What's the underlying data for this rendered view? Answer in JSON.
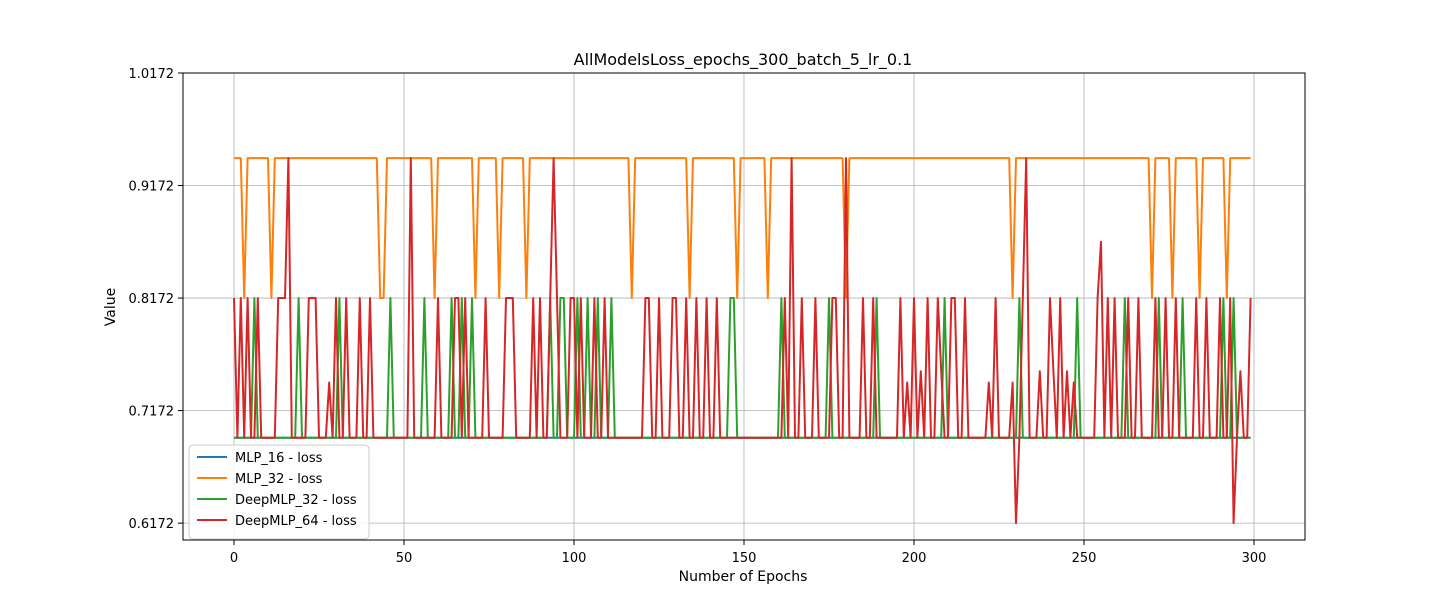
{
  "chart_data": {
    "type": "line",
    "title": "AllModelsLoss_epochs_300_batch_5_lr_0.1",
    "xlabel": "Number of Epochs",
    "ylabel": "Value",
    "xlim": [
      -15,
      315
    ],
    "ylim": [
      0.6022,
      1.0172
    ],
    "xticks": [
      0,
      50,
      100,
      150,
      200,
      250,
      300
    ],
    "xtick_labels": [
      "0",
      "50",
      "100",
      "150",
      "200",
      "250",
      "300"
    ],
    "yticks": [
      0.6172,
      0.7172,
      0.8172,
      0.9172,
      1.0172
    ],
    "ytick_labels": [
      "0.6172",
      "0.7172",
      "0.8172",
      "0.9172",
      "1.0172"
    ],
    "grid": true,
    "legend_position": "lower-left",
    "baseline": 0.6931,
    "series": [
      {
        "name": "MLP_16 - loss",
        "color": "#1f77b4",
        "base": 0.6931,
        "spikes": []
      },
      {
        "name": "MLP_32 - loss",
        "color": "#ff7f0e",
        "base": 0.9416,
        "spikes": [
          [
            3,
            0.8172
          ],
          [
            11,
            0.8172
          ],
          [
            43,
            0.8172
          ],
          [
            44,
            0.8172
          ],
          [
            59,
            0.8172
          ],
          [
            71,
            0.8172
          ],
          [
            78,
            0.8172
          ],
          [
            86,
            0.8172
          ],
          [
            117,
            0.8172
          ],
          [
            134,
            0.8172
          ],
          [
            148,
            0.8172
          ],
          [
            157,
            0.8172
          ],
          [
            180,
            0.8172
          ],
          [
            229,
            0.8172
          ],
          [
            270,
            0.8172
          ],
          [
            276,
            0.8172
          ],
          [
            284,
            0.8172
          ],
          [
            292,
            0.8172
          ]
        ]
      },
      {
        "name": "DeepMLP_32 - loss",
        "color": "#2ca02c",
        "base": 0.6931,
        "spikes": [
          [
            6,
            0.8172
          ],
          [
            19,
            0.8172
          ],
          [
            31,
            0.8172
          ],
          [
            46,
            0.8172
          ],
          [
            56,
            0.8172
          ],
          [
            64,
            0.8172
          ],
          [
            67,
            0.8172
          ],
          [
            70,
            0.8172
          ],
          [
            93,
            0.8172
          ],
          [
            96,
            0.8172
          ],
          [
            97,
            0.8172
          ],
          [
            101,
            0.8172
          ],
          [
            104,
            0.8172
          ],
          [
            107,
            0.8172
          ],
          [
            111,
            0.8172
          ],
          [
            146,
            0.8172
          ],
          [
            147,
            0.8172
          ],
          [
            161,
            0.8172
          ],
          [
            175,
            0.8172
          ],
          [
            189,
            0.8172
          ],
          [
            209,
            0.8172
          ],
          [
            231,
            0.8172
          ],
          [
            248,
            0.8172
          ],
          [
            262,
            0.8172
          ],
          [
            272,
            0.8172
          ],
          [
            279,
            0.8172
          ],
          [
            291,
            0.8172
          ],
          [
            294,
            0.8172
          ]
        ]
      },
      {
        "name": "DeepMLP_64 - loss",
        "color": "#d62728",
        "base": 0.6931,
        "spikes": [
          [
            0,
            0.8172
          ],
          [
            2,
            0.8172
          ],
          [
            4,
            0.8172
          ],
          [
            7,
            0.8172
          ],
          [
            13,
            0.8172
          ],
          [
            14,
            0.8172
          ],
          [
            15,
            0.8172
          ],
          [
            16,
            0.9416
          ],
          [
            22,
            0.8172
          ],
          [
            23,
            0.8172
          ],
          [
            24,
            0.8172
          ],
          [
            28,
            0.7422
          ],
          [
            30,
            0.8172
          ],
          [
            33,
            0.8172
          ],
          [
            37,
            0.8172
          ],
          [
            40,
            0.8172
          ],
          [
            52,
            0.9416
          ],
          [
            60,
            0.8172
          ],
          [
            65,
            0.8172
          ],
          [
            66,
            0.8172
          ],
          [
            68,
            0.8172
          ],
          [
            74,
            0.8172
          ],
          [
            80,
            0.8172
          ],
          [
            81,
            0.8172
          ],
          [
            82,
            0.8172
          ],
          [
            88,
            0.8172
          ],
          [
            90,
            0.8172
          ],
          [
            93,
            0.8172
          ],
          [
            94,
            0.9416
          ],
          [
            95,
            0.8172
          ],
          [
            99,
            0.8172
          ],
          [
            100,
            0.8172
          ],
          [
            102,
            0.8172
          ],
          [
            106,
            0.8172
          ],
          [
            109,
            0.8172
          ],
          [
            121,
            0.8172
          ],
          [
            122,
            0.8172
          ],
          [
            125,
            0.8172
          ],
          [
            129,
            0.8172
          ],
          [
            130,
            0.8172
          ],
          [
            133,
            0.8172
          ],
          [
            136,
            0.8172
          ],
          [
            139,
            0.8172
          ],
          [
            142,
            0.8172
          ],
          [
            162,
            0.8172
          ],
          [
            164,
            0.9416
          ],
          [
            167,
            0.8172
          ],
          [
            171,
            0.8172
          ],
          [
            176,
            0.8172
          ],
          [
            177,
            0.8172
          ],
          [
            180,
            0.9416
          ],
          [
            185,
            0.8172
          ],
          [
            188,
            0.8172
          ],
          [
            196,
            0.8172
          ],
          [
            198,
            0.7422
          ],
          [
            200,
            0.8172
          ],
          [
            202,
            0.7522
          ],
          [
            204,
            0.8172
          ],
          [
            207,
            0.8172
          ],
          [
            208,
            0.7522
          ],
          [
            211,
            0.8172
          ],
          [
            212,
            0.8172
          ],
          [
            215,
            0.8172
          ],
          [
            222,
            0.7422
          ],
          [
            224,
            0.8172
          ],
          [
            229,
            0.7422
          ],
          [
            230,
            0.6172
          ],
          [
            232,
            0.8172
          ],
          [
            233,
            0.9416
          ],
          [
            237,
            0.7522
          ],
          [
            240,
            0.8172
          ],
          [
            241,
            0.7522
          ],
          [
            243,
            0.8172
          ],
          [
            245,
            0.7522
          ],
          [
            247,
            0.7422
          ],
          [
            254,
            0.8172
          ],
          [
            255,
            0.8672
          ],
          [
            257,
            0.8172
          ],
          [
            259,
            0.8172
          ],
          [
            263,
            0.8172
          ],
          [
            266,
            0.8172
          ],
          [
            271,
            0.8172
          ],
          [
            274,
            0.8172
          ],
          [
            277,
            0.8172
          ],
          [
            283,
            0.8172
          ],
          [
            286,
            0.8172
          ],
          [
            290,
            0.8172
          ],
          [
            293,
            0.8172
          ],
          [
            294,
            0.6172
          ],
          [
            296,
            0.7522
          ],
          [
            299,
            0.8172
          ]
        ]
      }
    ]
  }
}
